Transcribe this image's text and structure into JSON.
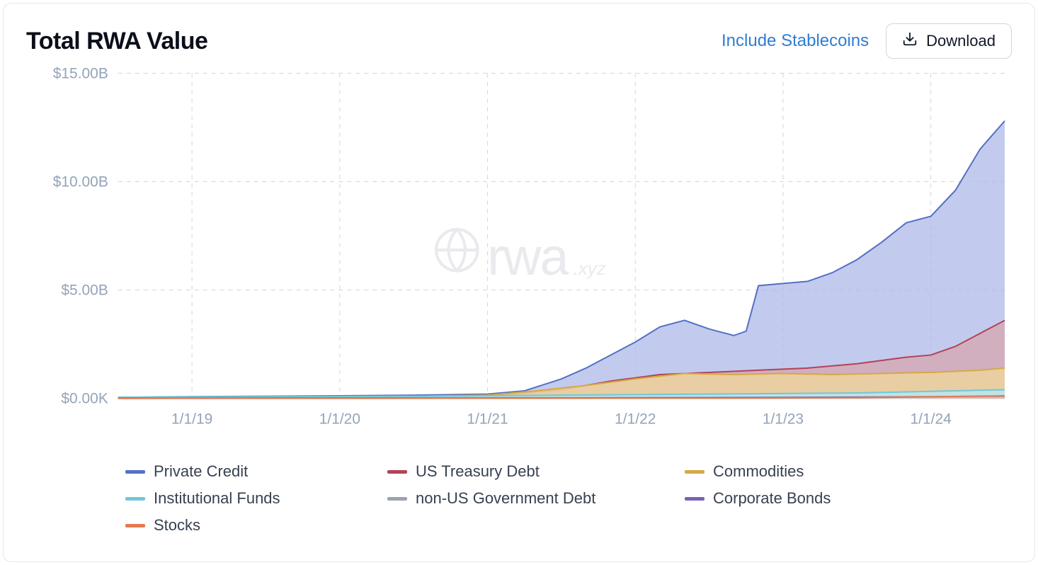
{
  "header": {
    "title": "Total RWA Value",
    "link_label": "Include Stablecoins",
    "download_label": "Download"
  },
  "watermark": {
    "main": "rwa",
    "sub": ".xyz"
  },
  "chart": {
    "type": "area",
    "background_color": "#ffffff",
    "grid_color": "#d1d5db",
    "axis_label_color": "#94a3b8",
    "axis_fontsize": 21,
    "y_axis": {
      "min": 0,
      "max": 15,
      "ticks": [
        {
          "v": 0,
          "label": "$0.00K"
        },
        {
          "v": 5,
          "label": "$5.00B"
        },
        {
          "v": 10,
          "label": "$10.00B"
        },
        {
          "v": 15,
          "label": "$15.00B"
        }
      ]
    },
    "x_axis": {
      "min": 0,
      "max": 72,
      "ticks": [
        {
          "v": 6,
          "label": "1/1/19"
        },
        {
          "v": 18,
          "label": "1/1/20"
        },
        {
          "v": 30,
          "label": "1/1/21"
        },
        {
          "v": 42,
          "label": "1/1/22"
        },
        {
          "v": 54,
          "label": "1/1/23"
        },
        {
          "v": 66,
          "label": "1/1/24"
        }
      ]
    },
    "series": [
      {
        "name": "Private Credit",
        "stroke": "#5470c6",
        "fill": "#adb9e8",
        "fill_opacity": 0.75,
        "stroke_width": 2,
        "points": [
          [
            0,
            0.05
          ],
          [
            6,
            0.08
          ],
          [
            12,
            0.1
          ],
          [
            18,
            0.12
          ],
          [
            24,
            0.15
          ],
          [
            30,
            0.2
          ],
          [
            33,
            0.35
          ],
          [
            36,
            0.9
          ],
          [
            38,
            1.4
          ],
          [
            40,
            2.0
          ],
          [
            42,
            2.6
          ],
          [
            44,
            3.3
          ],
          [
            46,
            3.6
          ],
          [
            48,
            3.2
          ],
          [
            50,
            2.9
          ],
          [
            51,
            3.1
          ],
          [
            52,
            5.2
          ],
          [
            54,
            5.3
          ],
          [
            56,
            5.4
          ],
          [
            58,
            5.8
          ],
          [
            60,
            6.4
          ],
          [
            62,
            7.2
          ],
          [
            64,
            8.1
          ],
          [
            66,
            8.4
          ],
          [
            68,
            9.6
          ],
          [
            70,
            11.5
          ],
          [
            72,
            12.8
          ]
        ]
      },
      {
        "name": "US Treasury Debt",
        "stroke": "#b3425a",
        "fill": "#d6a6ae",
        "fill_opacity": 0.75,
        "stroke_width": 2,
        "points": [
          [
            0,
            0.03
          ],
          [
            30,
            0.1
          ],
          [
            36,
            0.4
          ],
          [
            40,
            0.8
          ],
          [
            44,
            1.1
          ],
          [
            48,
            1.2
          ],
          [
            52,
            1.3
          ],
          [
            56,
            1.4
          ],
          [
            60,
            1.6
          ],
          [
            64,
            1.9
          ],
          [
            66,
            2.0
          ],
          [
            68,
            2.4
          ],
          [
            70,
            3.0
          ],
          [
            72,
            3.6
          ]
        ]
      },
      {
        "name": "Commodities",
        "stroke": "#d6a943",
        "fill": "#ecd49d",
        "fill_opacity": 0.85,
        "stroke_width": 2,
        "points": [
          [
            0,
            0.02
          ],
          [
            24,
            0.1
          ],
          [
            30,
            0.15
          ],
          [
            34,
            0.35
          ],
          [
            38,
            0.6
          ],
          [
            42,
            0.9
          ],
          [
            46,
            1.15
          ],
          [
            50,
            1.1
          ],
          [
            54,
            1.15
          ],
          [
            58,
            1.1
          ],
          [
            62,
            1.15
          ],
          [
            66,
            1.2
          ],
          [
            70,
            1.3
          ],
          [
            72,
            1.4
          ]
        ]
      },
      {
        "name": "Institutional Funds",
        "stroke": "#6fc8d6",
        "fill": "#bce5ec",
        "fill_opacity": 0.9,
        "stroke_width": 2,
        "points": [
          [
            0,
            0.05
          ],
          [
            12,
            0.08
          ],
          [
            24,
            0.1
          ],
          [
            36,
            0.15
          ],
          [
            48,
            0.2
          ],
          [
            60,
            0.25
          ],
          [
            72,
            0.4
          ]
        ]
      },
      {
        "name": "non-US Government Debt",
        "stroke": "#9aa3af",
        "fill": "#d4d8de",
        "fill_opacity": 0.7,
        "stroke_width": 2,
        "points": [
          [
            0,
            0.01
          ],
          [
            36,
            0.03
          ],
          [
            54,
            0.05
          ],
          [
            72,
            0.1
          ]
        ]
      },
      {
        "name": "Corporate Bonds",
        "stroke": "#7b61b8",
        "fill": "#c3b6db",
        "fill_opacity": 0.7,
        "stroke_width": 2,
        "points": [
          [
            0,
            0.01
          ],
          [
            36,
            0.02
          ],
          [
            54,
            0.04
          ],
          [
            72,
            0.08
          ]
        ]
      },
      {
        "name": "Stocks",
        "stroke": "#e07b4f",
        "fill": "#f0bda3",
        "fill_opacity": 0.7,
        "stroke_width": 2,
        "points": [
          [
            0,
            0.0
          ],
          [
            48,
            0.01
          ],
          [
            60,
            0.03
          ],
          [
            72,
            0.12
          ]
        ]
      }
    ]
  },
  "legend": {
    "items": [
      {
        "label": "Private Credit",
        "color": "#5470c6"
      },
      {
        "label": "US Treasury Debt",
        "color": "#b3425a"
      },
      {
        "label": "Commodities",
        "color": "#d6a943"
      },
      {
        "label": "Institutional Funds",
        "color": "#6fc8d6"
      },
      {
        "label": "non-US Government Debt",
        "color": "#9aa3af"
      },
      {
        "label": "Corporate Bonds",
        "color": "#7b61b8"
      },
      {
        "label": "Stocks",
        "color": "#e07b4f"
      }
    ]
  }
}
